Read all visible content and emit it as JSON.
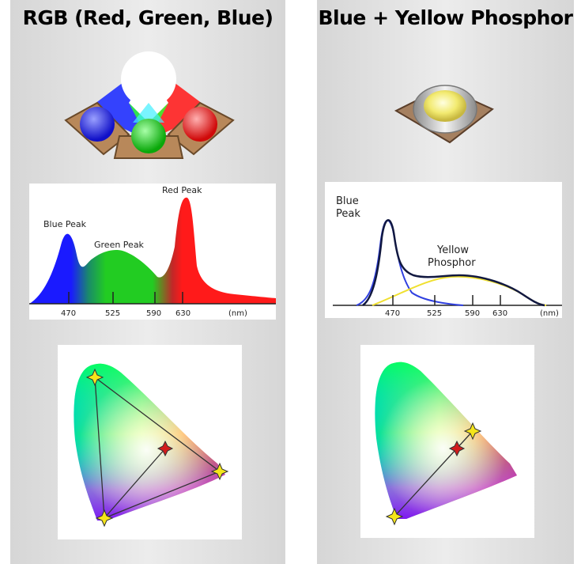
{
  "left_panel": {
    "title": "RGB (Red, Green, Blue)",
    "spectrum": {
      "peak_labels": [
        "Blue Peak",
        "Green Peak",
        "Red Peak"
      ],
      "ticks": [
        "470",
        "525",
        "590",
        "630"
      ],
      "unit": "(nm)"
    }
  },
  "right_panel": {
    "title": "Blue + Yellow Phosphor",
    "spectrum": {
      "blue_label_line1": "Blue",
      "blue_label_line2": "Peak",
      "yellow_label_line1": "Yellow",
      "yellow_label_line2": "Phosphor",
      "ticks": [
        "470",
        "525",
        "590",
        "630"
      ],
      "unit": "(nm)"
    }
  },
  "colors": {
    "blue": "#1a1aff",
    "green": "#22cc22",
    "red": "#ff1a1a",
    "yellow_marker": "#f5e51a",
    "red_marker": "#d21c1c"
  }
}
